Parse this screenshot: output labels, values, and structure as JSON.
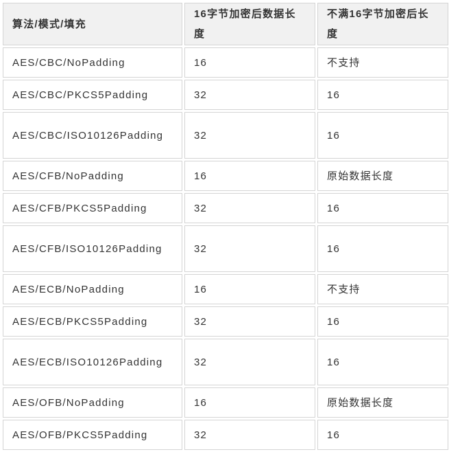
{
  "table": {
    "headers": [
      "算法/模式/填充",
      "16字节加密后数据长度",
      "不满16字节加密后长度"
    ],
    "rows": [
      [
        "AES/CBC/NoPadding",
        "16",
        "不支持"
      ],
      [
        "AES/CBC/PKCS5Padding",
        "32",
        "16"
      ],
      [
        "AES/CBC/ISO10126Padding",
        "32",
        "16"
      ],
      [
        "AES/CFB/NoPadding",
        "16",
        "原始数据长度"
      ],
      [
        "AES/CFB/PKCS5Padding",
        "32",
        "16"
      ],
      [
        "AES/CFB/ISO10126Padding",
        "32",
        "16"
      ],
      [
        "AES/ECB/NoPadding",
        "16",
        "不支持"
      ],
      [
        "AES/ECB/PKCS5Padding",
        "32",
        "16"
      ],
      [
        "AES/ECB/ISO10126Padding",
        "32",
        "16"
      ],
      [
        "AES/OFB/NoPadding",
        "16",
        "原始数据长度"
      ],
      [
        "AES/OFB/PKCS5Padding",
        "32",
        "16"
      ]
    ]
  }
}
